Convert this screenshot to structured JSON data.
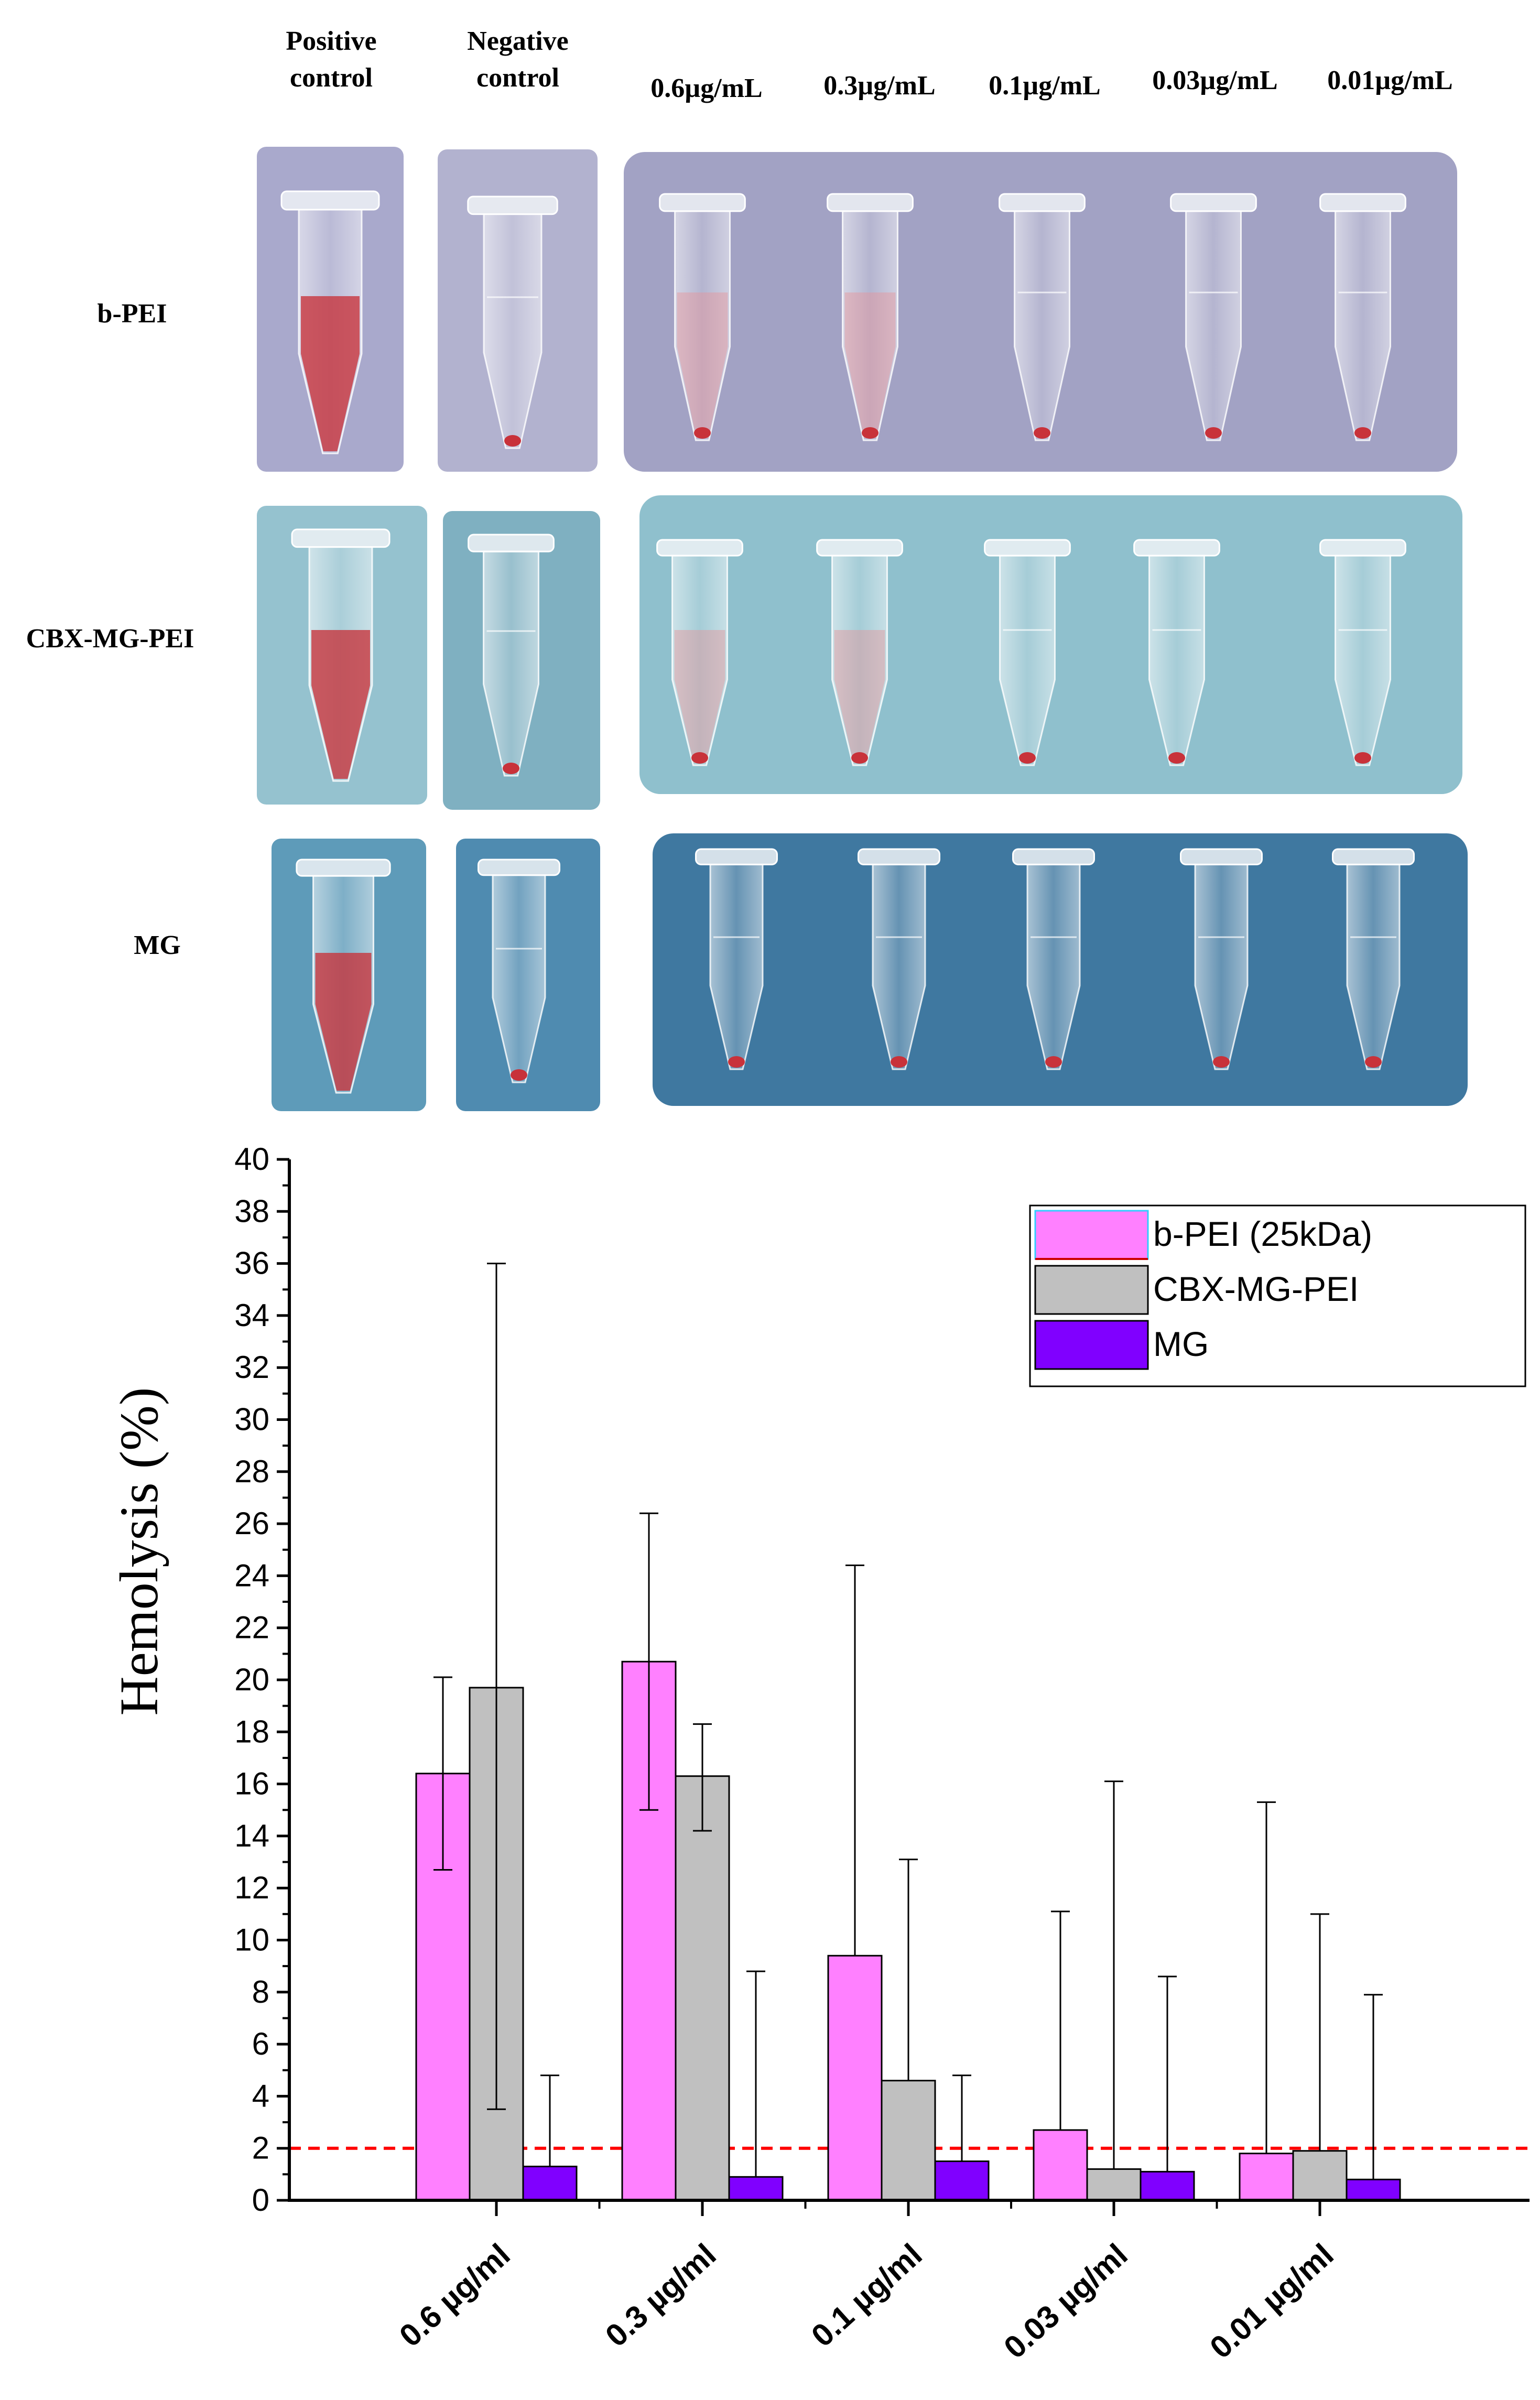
{
  "photo_panel": {
    "column_headers": [
      "Positive\ncontrol",
      "Negative\ncontrol",
      "0.6µg/mL",
      "0.3µg/mL",
      "0.1µg/mL",
      "0.03µg/mL",
      "0.01µg/mL"
    ],
    "row_labels": [
      "b-PEI",
      "CBX-MG-PEI",
      "MG"
    ],
    "colors": {
      "blood_red": "#c8323a",
      "photo_bg_row1": "#a8a8c8",
      "photo_bg_row2": "#9cc4d0",
      "photo_bg_row3": "#4e87a8"
    }
  },
  "chart_data": {
    "type": "bar",
    "categories": [
      "0.6 µg/ml",
      "0.3 µg/ml",
      "0.1 µg/ml",
      "0.03 µg/ml",
      "0.01 µg/ml"
    ],
    "series": [
      {
        "name": "b-PEI (25kDa)",
        "color": "#ff80ff",
        "values": [
          16.4,
          20.7,
          9.4,
          2.7,
          1.8
        ],
        "error_upper": [
          20.1,
          26.4,
          24.4,
          11.1,
          15.3
        ],
        "error_lower": [
          12.7,
          15.0,
          9.4,
          2.7,
          1.8
        ]
      },
      {
        "name": "CBX-MG-PEI",
        "color": "#c0c0c0",
        "values": [
          19.7,
          16.3,
          4.6,
          1.2,
          1.9
        ],
        "error_upper": [
          36.0,
          18.3,
          13.1,
          16.1,
          11.0
        ],
        "error_lower": [
          3.5,
          14.2,
          4.6,
          1.2,
          1.9
        ]
      },
      {
        "name": "MG",
        "color": "#8000ff",
        "values": [
          1.3,
          0.9,
          1.5,
          1.1,
          0.8
        ],
        "error_upper": [
          4.8,
          8.8,
          4.8,
          8.6,
          7.9
        ],
        "error_lower": [
          1.3,
          0.9,
          1.5,
          1.1,
          0.8
        ]
      }
    ],
    "threshold": {
      "value": 2,
      "color": "#ff0000"
    },
    "ylabel": "Hemolysis (%)",
    "xlabel": "",
    "ylim": [
      0,
      40
    ],
    "yticks": [
      0,
      2,
      4,
      6,
      8,
      10,
      12,
      14,
      16,
      18,
      20,
      22,
      24,
      26,
      28,
      30,
      32,
      34,
      36,
      38,
      40
    ],
    "legend_position": "top-right"
  }
}
